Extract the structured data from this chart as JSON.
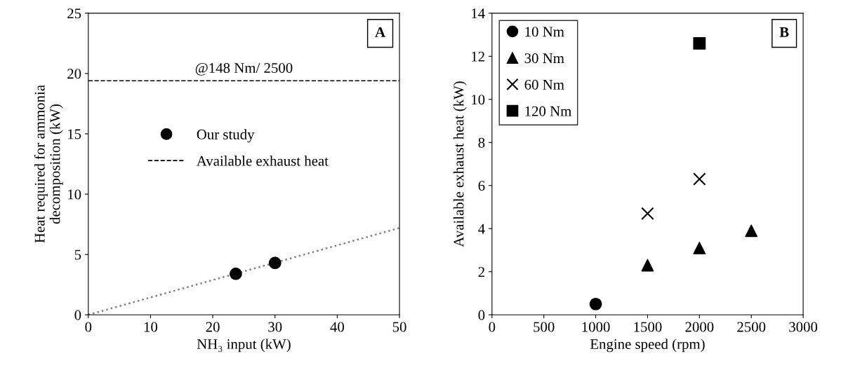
{
  "chart_data": [
    {
      "type": "scatter",
      "xlabel": "NH₃ input (kW)",
      "ylabel": "Heat required for ammonia\ndecomposition (kW)",
      "xlim": [
        0,
        50
      ],
      "ylim": [
        0,
        25
      ],
      "xticks": [
        0,
        10,
        20,
        30,
        40,
        50
      ],
      "yticks": [
        0,
        5,
        10,
        15,
        20,
        25
      ],
      "grid": false,
      "legend": "center",
      "annotations": [
        "A",
        {
          "text": "@148 Nm/ 2500",
          "x": 25,
          "y": 19.4
        }
      ],
      "series": [
        {
          "name": "Our study",
          "color": "#000000",
          "marker": "circle",
          "x": [
            23.7,
            30
          ],
          "values": [
            3.4,
            4.3
          ]
        },
        {
          "name": "Available exhaust heat",
          "type": "line",
          "color": "#000000",
          "line_style": "dashed",
          "marker": "none",
          "x": [
            0,
            50
          ],
          "values": [
            19.4,
            19.4
          ]
        },
        {
          "type": "line",
          "color": "#808080",
          "line_style": "dotted",
          "marker": "none",
          "x": [
            0,
            50
          ],
          "values": [
            0,
            7.2
          ]
        }
      ]
    },
    {
      "type": "scatter",
      "xlabel": "Engine speed (rpm)",
      "ylabel": "Available exhaust heat (kW)",
      "xlim": [
        0,
        3000
      ],
      "ylim": [
        0,
        14
      ],
      "xticks": [
        0,
        500,
        1000,
        1500,
        2000,
        2500,
        3000
      ],
      "yticks": [
        0,
        2,
        4,
        6,
        8,
        10,
        12,
        14
      ],
      "grid": false,
      "legend": "top left",
      "annotations": [
        "B"
      ],
      "series": [
        {
          "name": "10 Nm",
          "color": "#000000",
          "marker": "circle",
          "x": [
            1000
          ],
          "values": [
            0.5
          ]
        },
        {
          "name": "30 Nm",
          "color": "#000000",
          "marker": "triangle",
          "x": [
            1500,
            2000,
            2500
          ],
          "values": [
            2.3,
            3.1,
            3.9
          ]
        },
        {
          "name": "60 Nm",
          "color": "#000000",
          "marker": "cross",
          "x": [
            1500,
            2000
          ],
          "values": [
            4.7,
            6.3
          ]
        },
        {
          "name": "120 Nm",
          "color": "#000000",
          "marker": "square",
          "x": [
            2000
          ],
          "values": [
            12.6
          ]
        }
      ]
    }
  ]
}
